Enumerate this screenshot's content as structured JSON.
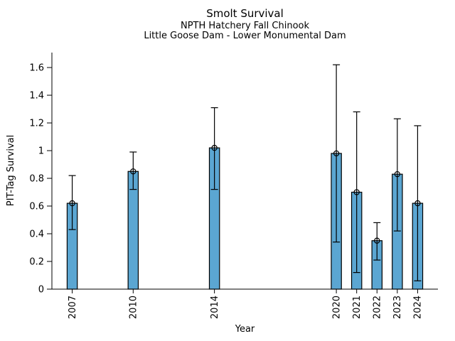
{
  "chart_data": {
    "type": "bar",
    "title": "Smolt Survival",
    "subtitle_lines": [
      "NPTH Hatchery Fall Chinook",
      "Little Goose Dam - Lower Monumental Dam"
    ],
    "xlabel": "Year",
    "ylabel": "PIT-Tag Survival",
    "categories": [
      "2007",
      "2010",
      "2014",
      "2020",
      "2021",
      "2022",
      "2023",
      "2024"
    ],
    "values": [
      0.62,
      0.85,
      1.02,
      0.98,
      0.7,
      0.35,
      0.83,
      0.62
    ],
    "error_low": [
      0.43,
      0.72,
      0.72,
      0.34,
      0.12,
      0.21,
      0.42,
      0.06
    ],
    "error_high": [
      0.82,
      0.99,
      1.31,
      1.62,
      1.28,
      0.48,
      1.23,
      1.18
    ],
    "yticks": [
      0,
      0.2,
      0.4,
      0.6,
      0.8,
      1.0,
      1.2,
      1.4,
      1.6
    ],
    "ytick_labels": [
      "0",
      "0.2",
      "0.4",
      "0.6",
      "0.8",
      "1",
      "1.2",
      "1.4",
      "1.6"
    ],
    "xlim": [
      2006,
      2025
    ],
    "ylim": [
      0,
      1.708
    ],
    "grid": false,
    "legend": "none",
    "bar_width_years": 0.5,
    "marker": "open-circle",
    "colors": {
      "bar_fill": "#5BA6D2",
      "bar_edge": "#000000",
      "error_bar": "#000000",
      "marker_edge": "#000000",
      "axis": "#000000",
      "text": "#000000",
      "background": "#FFFFFF"
    }
  }
}
